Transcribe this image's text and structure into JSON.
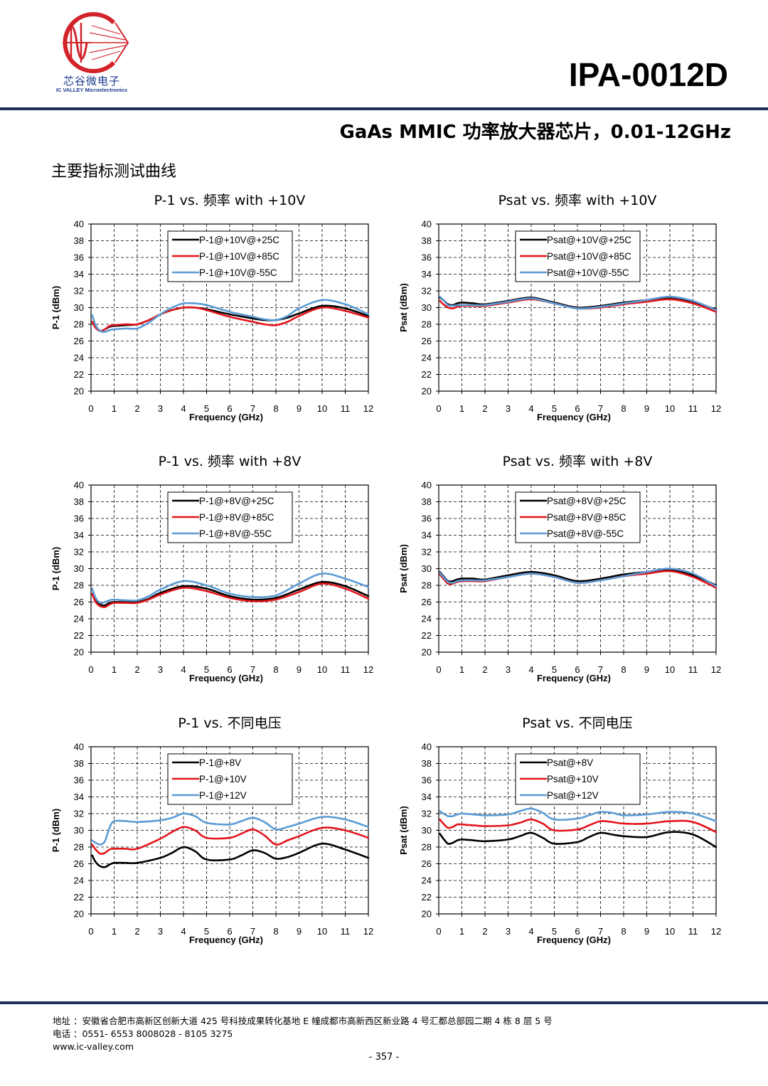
{
  "header": {
    "logo_cn": "芯谷微电子",
    "logo_en": "IC VALLEY Microelectronics",
    "model": "IPA-0012D",
    "subtitle": "GaAs MMIC 功率放大器芯片，0.01-12GHz",
    "section_title": "主要指标测试曲线"
  },
  "colors": {
    "brand": "#1f2e57",
    "logo_red": "#d2232a",
    "black_series": "#000000",
    "red_series": "#e3151b",
    "blue_series": "#5b9bd5"
  },
  "chart_data": [
    {
      "type": "line",
      "title": "P-1 vs.  频率  with +10V",
      "xlabel": "Frequency (GHz)",
      "ylabel": "P-1 (dBm)",
      "xlim": [
        0,
        12
      ],
      "ylim": [
        20,
        40
      ],
      "xticks": [
        0,
        1,
        2,
        3,
        4,
        5,
        6,
        7,
        8,
        9,
        10,
        11,
        12
      ],
      "yticks": [
        20,
        22,
        24,
        26,
        28,
        30,
        32,
        34,
        36,
        38,
        40
      ],
      "grid": true,
      "legend": "top-center",
      "series": [
        {
          "name": "P-1@+10V@+25C",
          "color": "#000000",
          "x": [
            0.05,
            0.2,
            0.4,
            0.6,
            0.8,
            1,
            1.5,
            2,
            2.5,
            3,
            3.5,
            4,
            4.5,
            5,
            6,
            7,
            7.5,
            8,
            8.5,
            9,
            10,
            11,
            12
          ],
          "y": [
            28.3,
            27.6,
            27.2,
            27.4,
            27.7,
            27.8,
            27.9,
            28.0,
            28.5,
            29.2,
            29.7,
            30.0,
            30.0,
            29.8,
            29.2,
            28.7,
            28.5,
            28.5,
            28.8,
            29.3,
            30.2,
            29.9,
            29.0
          ]
        },
        {
          "name": "P-1@+10V@+85C",
          "color": "#e3151b",
          "x": [
            0.05,
            0.2,
            0.4,
            0.6,
            0.8,
            1,
            1.5,
            2,
            2.5,
            3,
            3.5,
            4,
            4.5,
            5,
            6,
            7,
            7.5,
            8,
            8.5,
            9,
            10,
            11,
            12
          ],
          "y": [
            28.3,
            27.6,
            27.2,
            27.4,
            27.8,
            27.9,
            28.0,
            28.0,
            28.5,
            29.2,
            29.7,
            30.0,
            30.0,
            29.7,
            28.9,
            28.3,
            28.0,
            27.9,
            28.3,
            29.0,
            30.0,
            29.6,
            28.8
          ]
        },
        {
          "name": "P-1@+10V@-55C",
          "color": "#5b9bd5",
          "x": [
            0.05,
            0.2,
            0.4,
            0.6,
            0.8,
            1,
            1.5,
            2,
            2.5,
            3,
            3.5,
            4,
            4.5,
            5,
            6,
            7,
            7.5,
            8,
            8.5,
            9,
            10,
            11,
            12
          ],
          "y": [
            29.1,
            27.9,
            27.2,
            27.1,
            27.3,
            27.4,
            27.5,
            27.5,
            28.2,
            29.2,
            30.0,
            30.5,
            30.5,
            30.3,
            29.5,
            28.9,
            28.6,
            28.5,
            29.0,
            29.9,
            30.9,
            30.4,
            29.2
          ]
        }
      ]
    },
    {
      "type": "line",
      "title": "Psat vs.  频率  with +10V",
      "xlabel": "Frequency (GHz)",
      "ylabel": "Psat (dBm)",
      "xlim": [
        0,
        12
      ],
      "ylim": [
        20,
        40
      ],
      "xticks": [
        0,
        1,
        2,
        3,
        4,
        5,
        6,
        7,
        8,
        9,
        10,
        11,
        12
      ],
      "yticks": [
        20,
        22,
        24,
        26,
        28,
        30,
        32,
        34,
        36,
        38,
        40
      ],
      "grid": true,
      "legend": "top-center",
      "series": [
        {
          "name": "Psat@+10V@+25C",
          "color": "#000000",
          "x": [
            0.05,
            0.2,
            0.4,
            0.6,
            0.8,
            1,
            1.5,
            2,
            3,
            4,
            5,
            6,
            7,
            8,
            9,
            10,
            11,
            12
          ],
          "y": [
            31.2,
            30.9,
            30.4,
            30.3,
            30.5,
            30.6,
            30.5,
            30.4,
            30.8,
            31.2,
            30.6,
            30.0,
            30.2,
            30.6,
            30.9,
            31.1,
            30.6,
            29.8
          ]
        },
        {
          "name": "Psat@+10V@+85C",
          "color": "#e3151b",
          "x": [
            0.05,
            0.2,
            0.4,
            0.6,
            0.8,
            1,
            1.5,
            2,
            3,
            4,
            5,
            6,
            7,
            8,
            9,
            10,
            11,
            12
          ],
          "y": [
            30.8,
            30.4,
            30.0,
            29.9,
            30.1,
            30.2,
            30.2,
            30.2,
            30.6,
            31.0,
            30.5,
            29.9,
            30.0,
            30.4,
            30.7,
            31.0,
            30.5,
            29.5
          ]
        },
        {
          "name": "Psat@+10V@-55C",
          "color": "#5b9bd5",
          "x": [
            0.05,
            0.2,
            0.4,
            0.6,
            0.8,
            1,
            1.5,
            2,
            3,
            4,
            5,
            6,
            7,
            8,
            9,
            10,
            11,
            12
          ],
          "y": [
            31.3,
            30.9,
            30.3,
            30.2,
            30.3,
            30.3,
            30.3,
            30.3,
            30.7,
            31.1,
            30.5,
            29.9,
            30.1,
            30.5,
            30.9,
            31.3,
            30.8,
            29.7
          ]
        }
      ]
    },
    {
      "type": "line",
      "title": "P-1 vs.  频率  with +8V",
      "xlabel": "Frequency (GHz)",
      "ylabel": "P-1 (dBm)",
      "xlim": [
        0,
        12
      ],
      "ylim": [
        20,
        40
      ],
      "xticks": [
        0,
        1,
        2,
        3,
        4,
        5,
        6,
        7,
        8,
        9,
        10,
        11,
        12
      ],
      "yticks": [
        20,
        22,
        24,
        26,
        28,
        30,
        32,
        34,
        36,
        38,
        40
      ],
      "grid": true,
      "legend": "top-center",
      "series": [
        {
          "name": "P-1@+8V@+25C",
          "color": "#000000",
          "x": [
            0.05,
            0.2,
            0.4,
            0.6,
            0.8,
            1,
            1.5,
            2,
            2.5,
            3,
            4,
            5,
            6,
            7,
            8,
            9,
            10,
            11,
            12
          ],
          "y": [
            27.0,
            26.2,
            25.7,
            25.6,
            25.9,
            26.0,
            26.0,
            26.0,
            26.4,
            27.1,
            27.9,
            27.6,
            26.7,
            26.3,
            26.5,
            27.5,
            28.4,
            27.9,
            26.7
          ]
        },
        {
          "name": "P-1@+8V@+85C",
          "color": "#e3151b",
          "x": [
            0.05,
            0.2,
            0.4,
            0.6,
            0.8,
            1,
            1.5,
            2,
            2.5,
            3,
            4,
            5,
            6,
            7,
            8,
            9,
            10,
            11,
            12
          ],
          "y": [
            27.0,
            26.0,
            25.5,
            25.4,
            25.7,
            25.9,
            25.9,
            25.9,
            26.3,
            26.9,
            27.7,
            27.3,
            26.5,
            26.1,
            26.3,
            27.2,
            28.2,
            27.6,
            26.4
          ]
        },
        {
          "name": "P-1@+8V@-55C",
          "color": "#5b9bd5",
          "x": [
            0.05,
            0.2,
            0.4,
            0.6,
            0.8,
            1,
            1.5,
            2,
            2.5,
            3,
            4,
            5,
            6,
            7,
            8,
            9,
            10,
            11,
            12
          ],
          "y": [
            27.6,
            26.5,
            25.9,
            26.0,
            26.2,
            26.3,
            26.2,
            26.2,
            26.7,
            27.5,
            28.5,
            28.0,
            27.0,
            26.6,
            26.8,
            28.2,
            29.4,
            28.8,
            27.8
          ]
        }
      ]
    },
    {
      "type": "line",
      "title": "Psat vs.  频率  with +8V",
      "xlabel": "Frequency (GHz)",
      "ylabel": "Psat (dBm)",
      "xlim": [
        0,
        12
      ],
      "ylim": [
        20,
        40
      ],
      "xticks": [
        0,
        1,
        2,
        3,
        4,
        5,
        6,
        7,
        8,
        9,
        10,
        11,
        12
      ],
      "yticks": [
        20,
        22,
        24,
        26,
        28,
        30,
        32,
        34,
        36,
        38,
        40
      ],
      "grid": true,
      "legend": "top-center",
      "series": [
        {
          "name": "Psat@+8V@+25C",
          "color": "#000000",
          "x": [
            0.05,
            0.2,
            0.4,
            0.6,
            0.8,
            1,
            1.5,
            2,
            3,
            4,
            5,
            6,
            7,
            8,
            9,
            10,
            11,
            12
          ],
          "y": [
            29.6,
            29.1,
            28.5,
            28.5,
            28.7,
            28.8,
            28.8,
            28.7,
            29.2,
            29.6,
            29.2,
            28.5,
            28.8,
            29.3,
            29.6,
            29.8,
            29.2,
            28.0
          ]
        },
        {
          "name": "Psat@+8V@+85C",
          "color": "#e3151b",
          "x": [
            0.05,
            0.2,
            0.4,
            0.6,
            0.8,
            1,
            1.5,
            2,
            3,
            4,
            5,
            6,
            7,
            8,
            9,
            10,
            11,
            12
          ],
          "y": [
            29.3,
            28.8,
            28.2,
            28.2,
            28.4,
            28.5,
            28.5,
            28.5,
            29.0,
            29.4,
            29.0,
            28.3,
            28.6,
            29.1,
            29.4,
            29.7,
            29.0,
            27.7
          ]
        },
        {
          "name": "Psat@+8V@-55C",
          "color": "#5b9bd5",
          "x": [
            0.05,
            0.2,
            0.4,
            0.6,
            0.8,
            1,
            1.5,
            2,
            3,
            4,
            5,
            6,
            7,
            8,
            9,
            10,
            11,
            12
          ],
          "y": [
            29.5,
            29.0,
            28.4,
            28.3,
            28.5,
            28.6,
            28.6,
            28.6,
            29.0,
            29.4,
            29.0,
            28.3,
            28.6,
            29.1,
            29.6,
            30.0,
            29.4,
            27.9
          ]
        }
      ]
    },
    {
      "type": "line",
      "title": "P-1 vs.  不同电压",
      "xlabel": "Frequency (GHz)",
      "ylabel": "P-1 (dBm)",
      "xlim": [
        0,
        12
      ],
      "ylim": [
        20,
        40
      ],
      "xticks": [
        0,
        1,
        2,
        3,
        4,
        5,
        6,
        7,
        8,
        9,
        10,
        11,
        12
      ],
      "yticks": [
        20,
        22,
        24,
        26,
        28,
        30,
        32,
        34,
        36,
        38,
        40
      ],
      "grid": true,
      "legend": "top-center",
      "series": [
        {
          "name": "P-1@+8V",
          "color": "#000000",
          "x": [
            0.05,
            0.2,
            0.4,
            0.6,
            0.8,
            1,
            1.5,
            2,
            3,
            3.5,
            4,
            4.5,
            5,
            6,
            6.5,
            7,
            7.5,
            8,
            8.5,
            9,
            10,
            11,
            12
          ],
          "y": [
            27.0,
            26.2,
            25.7,
            25.6,
            25.9,
            26.1,
            26.1,
            26.1,
            26.7,
            27.3,
            28.0,
            27.5,
            26.5,
            26.5,
            27.0,
            27.6,
            27.3,
            26.6,
            26.8,
            27.3,
            28.4,
            27.7,
            26.7
          ]
        },
        {
          "name": "P-1@+10V",
          "color": "#e3151b",
          "x": [
            0.05,
            0.2,
            0.4,
            0.6,
            0.8,
            1,
            1.5,
            2,
            3,
            3.5,
            4,
            4.5,
            5,
            6,
            6.5,
            7,
            7.5,
            8,
            8.5,
            9,
            10,
            11,
            12
          ],
          "y": [
            28.3,
            27.7,
            27.2,
            27.3,
            27.7,
            27.8,
            27.8,
            27.8,
            29.0,
            29.8,
            30.4,
            30.0,
            29.1,
            29.1,
            29.6,
            30.1,
            29.4,
            28.3,
            28.8,
            29.3,
            30.3,
            30.0,
            29.1
          ]
        },
        {
          "name": "P-1@+12V",
          "color": "#5b9bd5",
          "x": [
            0.05,
            0.2,
            0.4,
            0.6,
            0.8,
            1,
            1.5,
            2,
            3,
            3.5,
            4,
            4.5,
            5,
            6,
            6.5,
            7,
            7.5,
            8,
            8.5,
            9,
            10,
            11,
            12
          ],
          "y": [
            28.8,
            28.5,
            28.3,
            28.7,
            30.3,
            31.1,
            31.1,
            31.0,
            31.2,
            31.5,
            32.0,
            31.7,
            30.9,
            30.7,
            31.1,
            31.5,
            31.0,
            30.1,
            30.4,
            30.8,
            31.6,
            31.3,
            30.4
          ]
        }
      ]
    },
    {
      "type": "line",
      "title": "Psat vs.  不同电压",
      "xlabel": "Frequency (GHz)",
      "ylabel": "Psat (dBm)",
      "xlim": [
        0,
        12
      ],
      "ylim": [
        20,
        40
      ],
      "xticks": [
        0,
        1,
        2,
        3,
        4,
        5,
        6,
        7,
        8,
        9,
        10,
        11,
        12
      ],
      "yticks": [
        20,
        22,
        24,
        26,
        28,
        30,
        32,
        34,
        36,
        38,
        40
      ],
      "grid": true,
      "legend": "top-center",
      "series": [
        {
          "name": "Psat@+8V",
          "color": "#000000",
          "x": [
            0.05,
            0.2,
            0.4,
            0.6,
            0.8,
            1,
            1.5,
            2,
            3,
            3.5,
            4,
            4.5,
            5,
            6,
            6.5,
            7,
            7.5,
            8,
            9,
            10,
            11,
            12
          ],
          "y": [
            29.6,
            29.0,
            28.4,
            28.5,
            28.8,
            28.9,
            28.8,
            28.7,
            28.9,
            29.3,
            29.7,
            29.1,
            28.4,
            28.6,
            29.2,
            29.7,
            29.5,
            29.3,
            29.2,
            29.8,
            29.5,
            28.0
          ]
        },
        {
          "name": "Psat@+10V",
          "color": "#e3151b",
          "x": [
            0.05,
            0.2,
            0.4,
            0.6,
            0.8,
            1,
            1.5,
            2,
            3,
            3.5,
            4,
            4.5,
            5,
            6,
            6.5,
            7,
            7.5,
            8,
            9,
            10,
            11,
            12
          ],
          "y": [
            31.3,
            30.8,
            30.3,
            30.4,
            30.7,
            30.7,
            30.6,
            30.5,
            30.6,
            30.9,
            31.3,
            30.8,
            30.0,
            30.1,
            30.6,
            31.1,
            31.0,
            30.8,
            30.8,
            31.1,
            31.0,
            29.8
          ]
        },
        {
          "name": "Psat@+12V",
          "color": "#5b9bd5",
          "x": [
            0.05,
            0.2,
            0.4,
            0.6,
            0.8,
            1,
            1.5,
            2,
            3,
            3.5,
            4,
            4.5,
            5,
            6,
            6.5,
            7,
            7.5,
            8,
            9,
            10,
            11,
            12
          ],
          "y": [
            32.3,
            32.0,
            31.7,
            31.7,
            31.9,
            32.0,
            31.9,
            31.8,
            31.9,
            32.3,
            32.6,
            32.1,
            31.3,
            31.4,
            31.8,
            32.2,
            32.1,
            31.8,
            31.9,
            32.2,
            32.0,
            31.1
          ]
        }
      ]
    }
  ],
  "footer": {
    "address": "地址 ：安徽省合肥市高新区创新大道 425 号科技成果转化基地 E 幢成都市高新西区新业路 4 号汇都总部园二期 4 栋 8 层 5 号",
    "phone": "电话 ：0551- 6553 8008028 - 8105 3275",
    "website": "www.ic-valley.com",
    "page_number": "- 357 -"
  }
}
